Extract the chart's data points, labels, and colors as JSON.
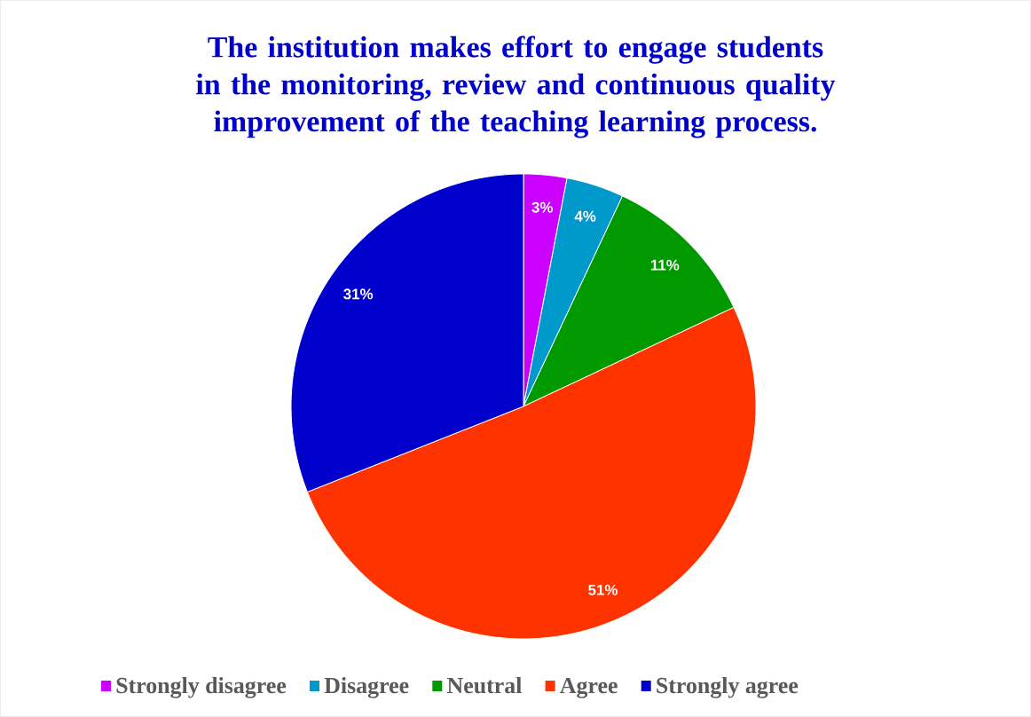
{
  "chart_data": {
    "type": "pie",
    "title": "The institution makes effort to engage students in the monitoring, review and continuous quality improvement of the teaching learning process.",
    "categories": [
      "Strongly disagree",
      "Disagree",
      "Neutral",
      "Agree",
      "Strongly agree"
    ],
    "values": [
      3,
      4,
      11,
      51,
      31
    ],
    "colors": [
      "#cc00ff",
      "#0099cc",
      "#009900",
      "#ff3300",
      "#0000cc"
    ],
    "value_labels": [
      "3%",
      "4%",
      "11%",
      "51%",
      "31%"
    ],
    "legend": "bottom"
  }
}
